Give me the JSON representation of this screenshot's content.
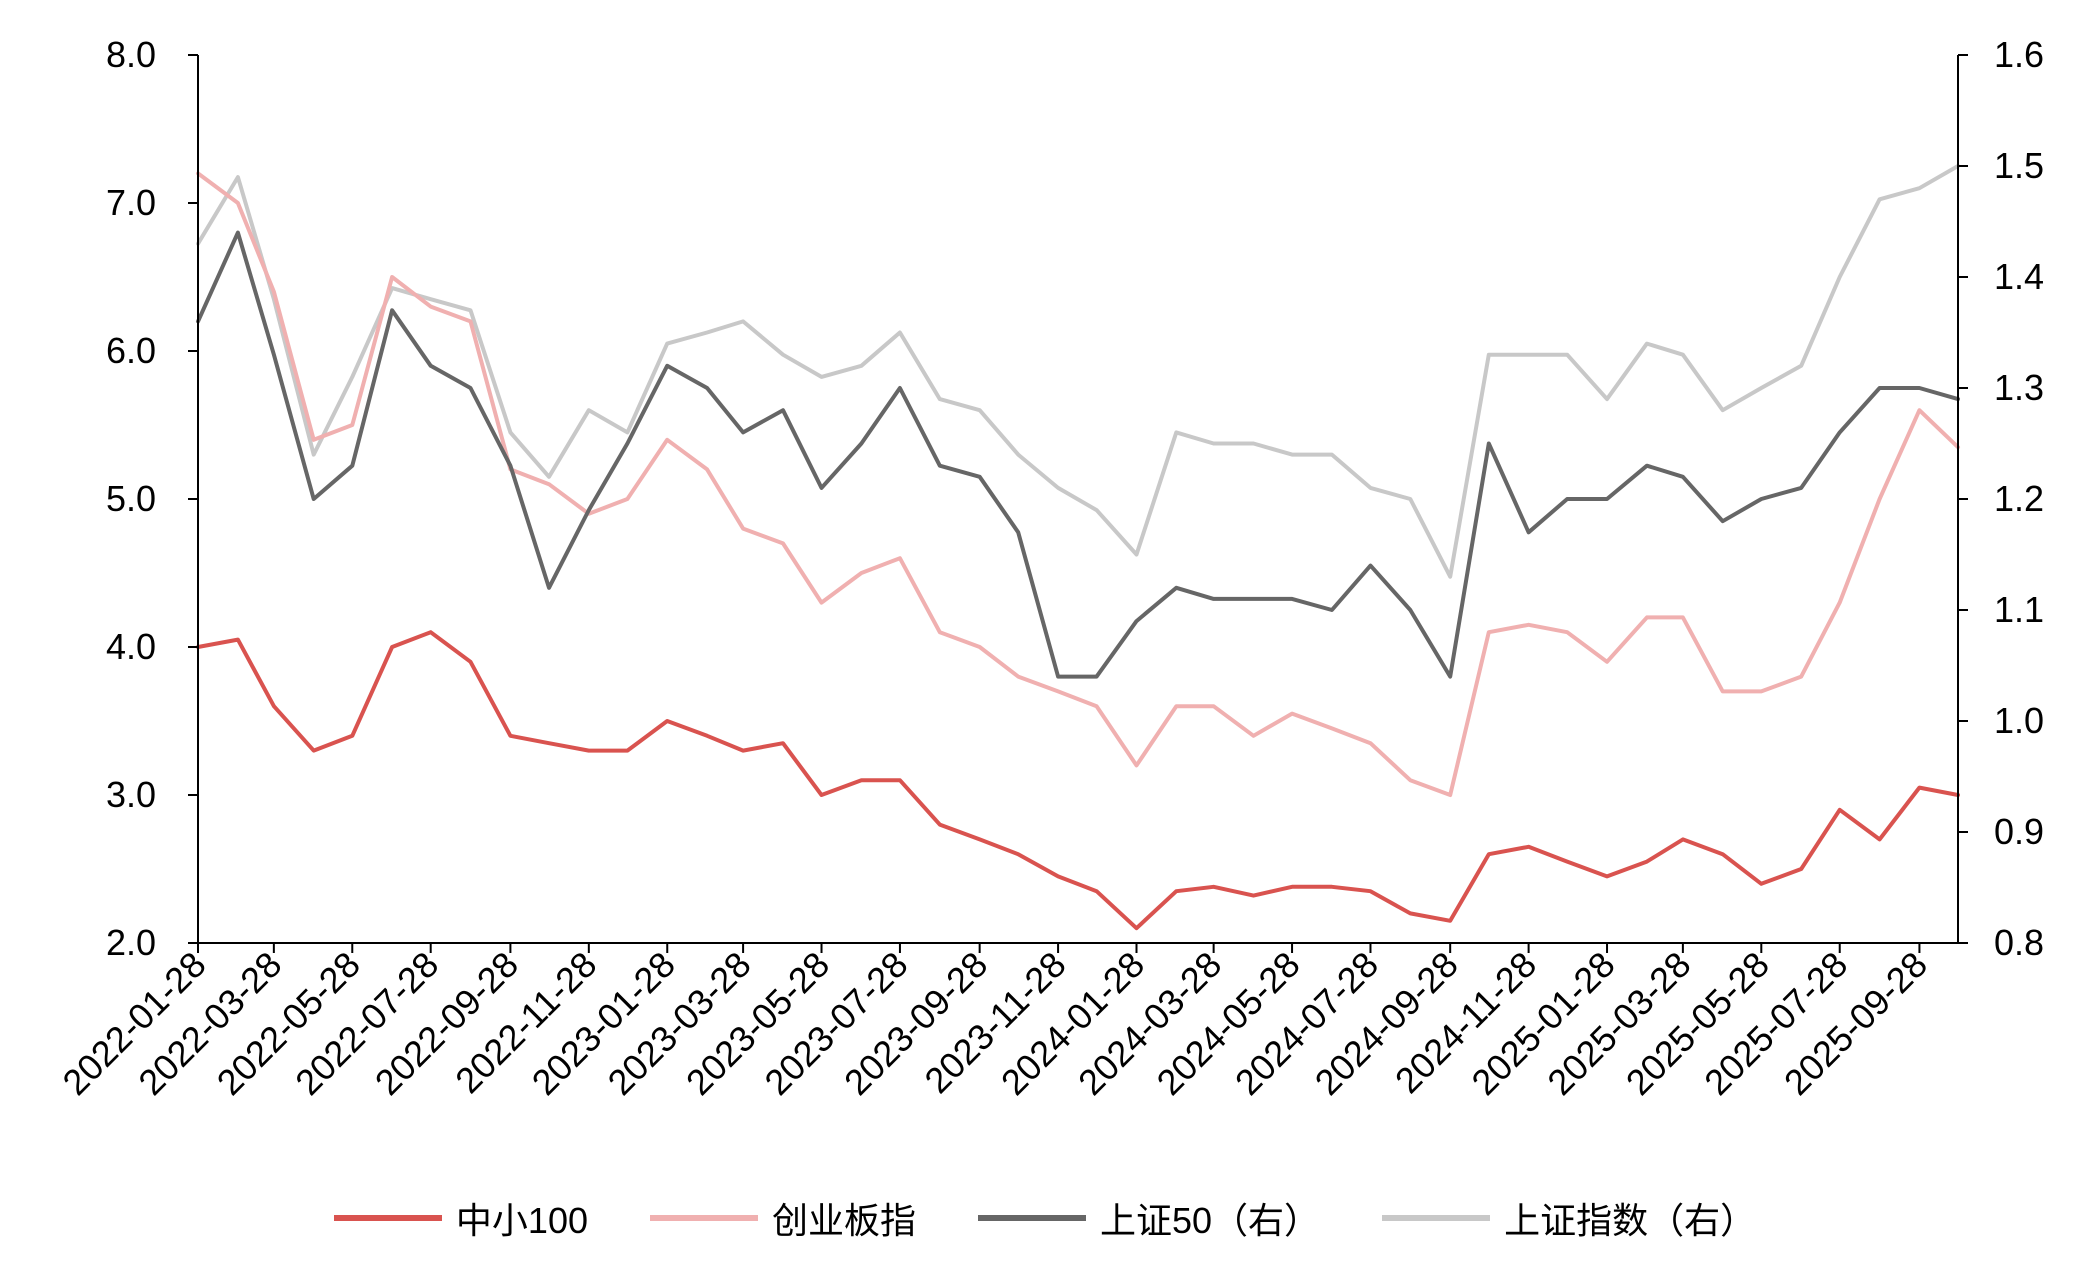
{
  "chart_data": {
    "type": "line",
    "title": "",
    "xlabel": "",
    "ylabel": "",
    "ylabel_right": "",
    "grid": false,
    "legend_position": "bottom",
    "x": [
      "2022-01-28",
      "2022-02-28",
      "2022-03-28",
      "2022-04-28",
      "2022-05-28",
      "2022-06-28",
      "2022-07-28",
      "2022-08-28",
      "2022-09-28",
      "2022-10-28",
      "2022-11-28",
      "2022-12-28",
      "2023-01-28",
      "2023-02-28",
      "2023-03-28",
      "2023-04-28",
      "2023-05-28",
      "2023-06-28",
      "2023-07-28",
      "2023-08-28",
      "2023-09-28",
      "2023-10-28",
      "2023-11-28",
      "2023-12-28",
      "2024-01-28",
      "2024-02-28",
      "2024-03-28",
      "2024-04-28",
      "2024-05-28",
      "2024-06-28",
      "2024-07-28",
      "2024-08-28",
      "2024-09-28",
      "2024-10-28",
      "2024-11-28",
      "2024-12-28",
      "2025-01-28",
      "2025-02-28",
      "2025-03-28",
      "2025-04-28",
      "2025-05-28",
      "2025-06-28",
      "2025-07-28",
      "2025-08-28",
      "2025-09-28",
      "2025-10-28"
    ],
    "x_tick_labels": [
      "2022-01-28",
      "2022-03-28",
      "2022-05-28",
      "2022-07-28",
      "2022-09-28",
      "2022-11-28",
      "2023-01-28",
      "2023-03-28",
      "2023-05-28",
      "2023-07-28",
      "2023-09-28",
      "2023-11-28",
      "2024-01-28",
      "2024-03-28",
      "2024-05-28",
      "2024-07-28",
      "2024-09-28",
      "2024-11-28",
      "2025-01-28",
      "2025-03-28",
      "2025-05-28",
      "2025-07-28",
      "2025-09-28"
    ],
    "y_left": {
      "min": 2.0,
      "max": 8.0,
      "ticks": [
        "2.0",
        "3.0",
        "4.0",
        "5.0",
        "6.0",
        "7.0",
        "8.0"
      ]
    },
    "y_right": {
      "min": 0.8,
      "max": 1.6,
      "ticks": [
        "0.8",
        "0.9",
        "1.0",
        "1.1",
        "1.2",
        "1.3",
        "1.4",
        "1.5",
        "1.6"
      ]
    },
    "series": [
      {
        "name": "中小100",
        "axis": "left",
        "color": "#d9534f",
        "values": [
          4.0,
          4.05,
          3.6,
          3.3,
          3.4,
          4.0,
          4.1,
          3.9,
          3.4,
          3.35,
          3.3,
          3.3,
          3.5,
          3.4,
          3.3,
          3.35,
          3.0,
          3.1,
          3.1,
          2.8,
          2.7,
          2.6,
          2.45,
          2.35,
          2.1,
          2.35,
          2.38,
          2.32,
          2.38,
          2.38,
          2.35,
          2.2,
          2.15,
          2.6,
          2.65,
          2.55,
          2.45,
          2.55,
          2.7,
          2.6,
          2.4,
          2.5,
          2.9,
          2.7,
          3.05,
          3.0
        ]
      },
      {
        "name": "创业板指",
        "axis": "left",
        "color": "#f0b0b0",
        "values": [
          7.2,
          7.0,
          6.4,
          5.4,
          5.5,
          6.5,
          6.3,
          6.2,
          5.2,
          5.1,
          4.9,
          5.0,
          5.4,
          5.2,
          4.8,
          4.7,
          4.3,
          4.5,
          4.6,
          4.1,
          4.0,
          3.8,
          3.7,
          3.6,
          3.2,
          3.6,
          3.6,
          3.4,
          3.55,
          3.45,
          3.35,
          3.1,
          3.0,
          4.1,
          4.15,
          4.1,
          3.9,
          4.2,
          4.2,
          3.7,
          3.7,
          3.8,
          4.3,
          5.0,
          5.6,
          5.35
        ]
      },
      {
        "name": "上证50（右）",
        "axis": "right",
        "color": "#666666",
        "values": [
          1.36,
          1.44,
          1.33,
          1.2,
          1.23,
          1.37,
          1.32,
          1.3,
          1.23,
          1.12,
          1.19,
          1.25,
          1.32,
          1.3,
          1.26,
          1.28,
          1.21,
          1.25,
          1.3,
          1.23,
          1.22,
          1.17,
          1.04,
          1.04,
          1.09,
          1.12,
          1.11,
          1.11,
          1.11,
          1.1,
          1.14,
          1.1,
          1.04,
          1.25,
          1.17,
          1.2,
          1.2,
          1.23,
          1.22,
          1.18,
          1.2,
          1.21,
          1.26,
          1.3,
          1.3,
          1.29
        ]
      },
      {
        "name": "上证指数（右）",
        "axis": "right",
        "color": "#c8c8c8",
        "values": [
          1.43,
          1.49,
          1.38,
          1.24,
          1.31,
          1.39,
          1.38,
          1.37,
          1.26,
          1.22,
          1.28,
          1.26,
          1.34,
          1.35,
          1.36,
          1.33,
          1.31,
          1.32,
          1.35,
          1.29,
          1.28,
          1.24,
          1.21,
          1.19,
          1.15,
          1.26,
          1.25,
          1.25,
          1.24,
          1.24,
          1.21,
          1.2,
          1.13,
          1.33,
          1.33,
          1.33,
          1.29,
          1.34,
          1.33,
          1.28,
          1.3,
          1.32,
          1.4,
          1.47,
          1.48,
          1.5
        ]
      }
    ]
  }
}
